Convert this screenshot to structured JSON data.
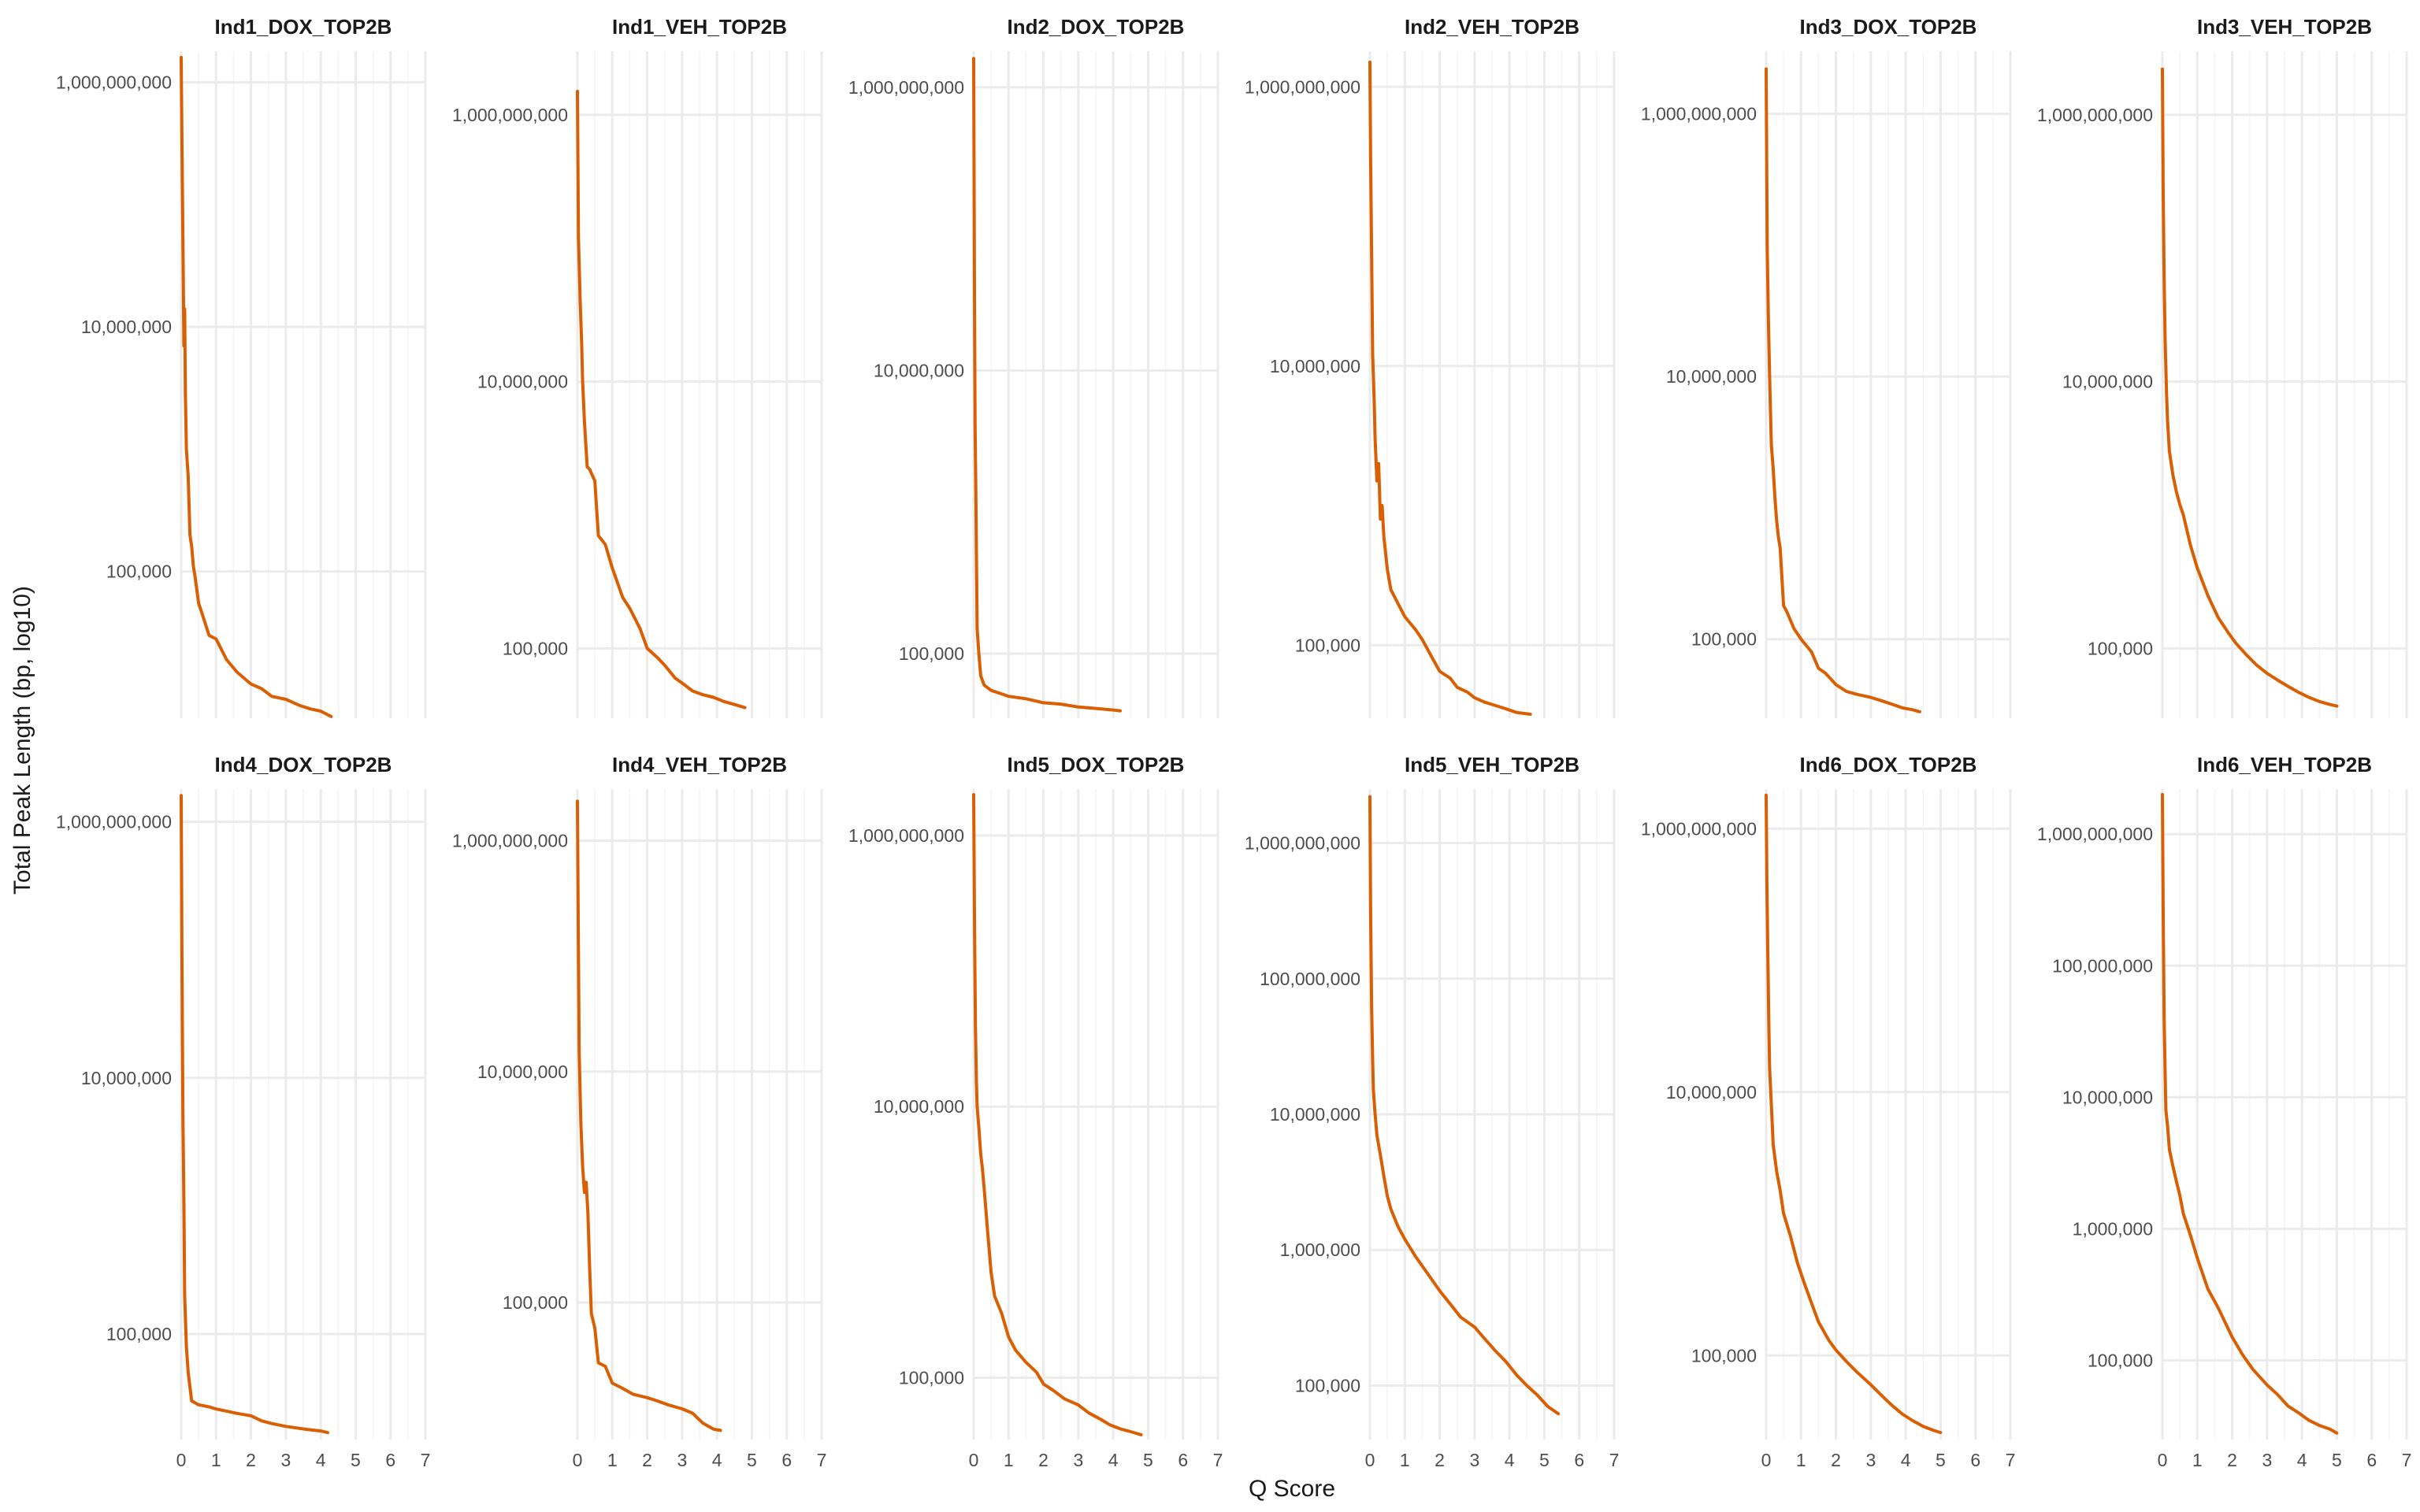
{
  "chart_data": {
    "type": "line",
    "layout": "facet grid, 2 rows x 6 columns, free y scales",
    "xlabel": "Q Score",
    "ylabel": "Total Peak Length (bp, log10)",
    "yscale": "log10",
    "xlim": [
      0,
      7
    ],
    "x_ticks": [
      "0",
      "1",
      "2",
      "3",
      "4",
      "5",
      "6",
      "7"
    ],
    "series_color": "#d95f02",
    "panels": [
      {
        "title": "Ind1_DOX_TOP2B",
        "ylim": [
          6300.0,
          1800000000.0
        ],
        "yticks": [
          100000.0,
          10000000.0,
          1000000000.0
        ],
        "ytick_labels": [
          "100,000",
          "10,000,000",
          "1,000,000,000"
        ],
        "x": [
          0,
          0.02,
          0.05,
          0.08,
          0.1,
          0.12,
          0.15,
          0.2,
          0.25,
          0.3,
          0.35,
          0.4,
          0.5,
          0.6,
          0.8,
          1.0,
          1.3,
          1.6,
          2.0,
          2.3,
          2.6,
          3.0,
          3.4,
          3.7,
          4.0,
          4.3
        ],
        "y": [
          1600000000.0,
          350000000.0,
          50000000.0,
          7000000.0,
          14000000.0,
          3000000.0,
          1000000.0,
          600000.0,
          200000.0,
          160000.0,
          110000.0,
          90000.0,
          55000.0,
          45000.0,
          30000.0,
          28000.0,
          19000.0,
          15000.0,
          12000.0,
          11000.0,
          9500.0,
          9000.0,
          8000.0,
          7500.0,
          7200.0,
          6500.0
        ]
      },
      {
        "title": "Ind1_VEH_TOP2B",
        "ylim": [
          30000.0,
          3000000000.0
        ],
        "yticks": [
          100000.0,
          10000000.0,
          1000000000.0
        ],
        "ytick_labels": [
          "100,000",
          "10,000,000",
          "1,000,000,000"
        ],
        "x": [
          0,
          0.03,
          0.08,
          0.12,
          0.15,
          0.2,
          0.28,
          0.35,
          0.5,
          0.6,
          0.7,
          0.8,
          1.0,
          1.3,
          1.5,
          1.8,
          2.0,
          2.3,
          2.5,
          2.8,
          3.0,
          3.3,
          3.6,
          3.9,
          4.2,
          4.5,
          4.8
        ],
        "y": [
          1500000000.0,
          120000000.0,
          40000000.0,
          20000000.0,
          10000000.0,
          5000000.0,
          2300000.0,
          2200000.0,
          1800000.0,
          700000.0,
          650000.0,
          600000.0,
          400000.0,
          240000.0,
          200000.0,
          140000.0,
          100000.0,
          85000.0,
          75000.0,
          60000.0,
          55000.0,
          48000.0,
          45000.0,
          43000.0,
          40000.0,
          38000.0,
          36000.0
        ]
      },
      {
        "title": "Ind2_DOX_TOP2B",
        "ylim": [
          35000.0,
          1800000000.0
        ],
        "yticks": [
          100000.0,
          10000000.0,
          1000000000.0
        ],
        "ytick_labels": [
          "100,000",
          "10,000,000",
          "1,000,000,000"
        ],
        "x": [
          0,
          0.02,
          0.04,
          0.06,
          0.08,
          0.1,
          0.15,
          0.2,
          0.3,
          0.5,
          0.8,
          1.0,
          1.5,
          2.0,
          2.5,
          3.0,
          3.5,
          4.0,
          4.2
        ],
        "y": [
          1600000000.0,
          50000000.0,
          4000000.0,
          1500000.0,
          500000.0,
          150000.0,
          100000.0,
          70000.0,
          60000.0,
          55000.0,
          52000.0,
          50000.0,
          48000.0,
          45000.0,
          44000.0,
          42000.0,
          41000.0,
          40000.0,
          39500.0
        ]
      },
      {
        "title": "Ind2_VEH_TOP2B",
        "ylim": [
          30000.0,
          1800000000.0
        ],
        "yticks": [
          100000.0,
          10000000.0,
          1000000000.0
        ],
        "ytick_labels": [
          "100,000",
          "10,000,000",
          "1,000,000,000"
        ],
        "x": [
          0,
          0.02,
          0.05,
          0.08,
          0.12,
          0.15,
          0.2,
          0.25,
          0.3,
          0.35,
          0.4,
          0.5,
          0.6,
          0.8,
          1.0,
          1.3,
          1.5,
          1.8,
          2.0,
          2.3,
          2.5,
          2.8,
          3.0,
          3.3,
          3.6,
          3.9,
          4.2,
          4.6
        ],
        "y": [
          1500000000.0,
          300000000.0,
          60000000.0,
          12000000.0,
          6000000.0,
          3000000.0,
          1500000.0,
          2000000.0,
          800000.0,
          1000000.0,
          600000.0,
          350000.0,
          250000.0,
          200000.0,
          160000.0,
          130000.0,
          110000.0,
          80000.0,
          65000.0,
          58000.0,
          50000.0,
          46000.0,
          42000.0,
          39000.0,
          37000.0,
          35000.0,
          33000.0,
          32000.0
        ]
      },
      {
        "title": "Ind3_DOX_TOP2B",
        "ylim": [
          25000.0,
          3000000000.0
        ],
        "yticks": [
          100000.0,
          10000000.0,
          1000000000.0
        ],
        "ytick_labels": [
          "100,000",
          "10,000,000",
          "1,000,000,000"
        ],
        "x": [
          0,
          0.03,
          0.06,
          0.1,
          0.12,
          0.15,
          0.2,
          0.25,
          0.3,
          0.35,
          0.4,
          0.5,
          0.6,
          0.8,
          1.0,
          1.3,
          1.5,
          1.7,
          2.0,
          2.3,
          2.6,
          3.0,
          3.3,
          3.6,
          3.9,
          4.2,
          4.4
        ],
        "y": [
          2200000000.0,
          100000000.0,
          30000000.0,
          10000000.0,
          6000000.0,
          3000000.0,
          2000000.0,
          1200000.0,
          800000.0,
          600000.0,
          500000.0,
          180000.0,
          160000.0,
          120000.0,
          100000.0,
          80000.0,
          60000.0,
          55000.0,
          45000.0,
          40000.0,
          38000.0,
          36000.0,
          34000.0,
          32000.0,
          30000.0,
          29000.0,
          28000.0
        ]
      },
      {
        "title": "Ind3_VEH_TOP2B",
        "ylim": [
          30000.0,
          3000000000.0
        ],
        "yticks": [
          100000.0,
          10000000.0,
          1000000000.0
        ],
        "ytick_labels": [
          "100,000",
          "10,000,000",
          "1,000,000,000"
        ],
        "x": [
          0,
          0.02,
          0.05,
          0.08,
          0.12,
          0.15,
          0.2,
          0.3,
          0.4,
          0.5,
          0.6,
          0.8,
          1.0,
          1.3,
          1.6,
          1.9,
          2.1,
          2.4,
          2.7,
          3.0,
          3.3,
          3.6,
          3.9,
          4.2,
          4.5,
          4.8,
          5.0
        ],
        "y": [
          2200000000.0,
          300000000.0,
          60000000.0,
          20000000.0,
          8000000.0,
          5000000.0,
          3000000.0,
          2000000.0,
          1500000.0,
          1200000.0,
          1000000.0,
          600000.0,
          400000.0,
          250000.0,
          170000.0,
          130000.0,
          110000.0,
          90000.0,
          75000.0,
          65000.0,
          58000.0,
          52000.0,
          47000.0,
          43000.0,
          40000.0,
          38000.0,
          37000.0
        ]
      },
      {
        "title": "Ind4_DOX_TOP2B",
        "ylim": [
          15000.0,
          1800000000.0
        ],
        "yticks": [
          100000.0,
          10000000.0,
          1000000000.0
        ],
        "ytick_labels": [
          "100,000",
          "10,000,000",
          "1,000,000,000"
        ],
        "x": [
          0,
          0.02,
          0.05,
          0.08,
          0.1,
          0.15,
          0.2,
          0.3,
          0.5,
          0.8,
          1.0,
          1.3,
          1.6,
          2.0,
          2.3,
          2.6,
          3.0,
          3.3,
          3.6,
          4.0,
          4.2
        ],
        "y": [
          1600000000.0,
          100000000.0,
          5000000.0,
          1000000.0,
          200000.0,
          80000.0,
          50000.0,
          30000.0,
          28000.0,
          27000.0,
          26000.0,
          25000.0,
          24000.0,
          23000.0,
          21000.0,
          20000.0,
          19000.0,
          18500.0,
          18000.0,
          17500.0,
          17000.0
        ]
      },
      {
        "title": "Ind4_VEH_TOP2B",
        "ylim": [
          6500.0,
          2800000000.0
        ],
        "yticks": [
          100000.0,
          10000000.0,
          1000000000.0
        ],
        "ytick_labels": [
          "100,000",
          "10,000,000",
          "1,000,000,000"
        ],
        "x": [
          0,
          0.02,
          0.05,
          0.1,
          0.15,
          0.2,
          0.25,
          0.3,
          0.35,
          0.4,
          0.5,
          0.6,
          0.8,
          1.0,
          1.3,
          1.6,
          2.0,
          2.3,
          2.6,
          3.0,
          3.3,
          3.6,
          3.9,
          4.1
        ],
        "y": [
          2200000000.0,
          250000000.0,
          15000000.0,
          3500000.0,
          1500000.0,
          900000.0,
          1100000.0,
          600000.0,
          200000.0,
          80000.0,
          60000.0,
          30000.0,
          28000.0,
          20000.0,
          18000.0,
          16000.0,
          15000.0,
          14000.0,
          13000.0,
          12000.0,
          11000.0,
          9000.0,
          8000.0,
          7800.0
        ]
      },
      {
        "title": "Ind5_DOX_TOP2B",
        "ylim": [
          35000.0,
          2200000000.0
        ],
        "yticks": [
          100000.0,
          10000000.0,
          1000000000.0
        ],
        "ytick_labels": [
          "100,000",
          "10,000,000",
          "1,000,000,000"
        ],
        "x": [
          0,
          0.02,
          0.05,
          0.08,
          0.1,
          0.15,
          0.2,
          0.25,
          0.3,
          0.4,
          0.5,
          0.6,
          0.8,
          1.0,
          1.2,
          1.5,
          1.8,
          2.0,
          2.3,
          2.6,
          3.0,
          3.3,
          3.6,
          3.9,
          4.2,
          4.5,
          4.8
        ],
        "y": [
          2000000000.0,
          300000000.0,
          40000000.0,
          15000000.0,
          10000000.0,
          7000000.0,
          4500000.0,
          3500000.0,
          2500000.0,
          1200000.0,
          600000.0,
          400000.0,
          300000.0,
          200000.0,
          160000.0,
          130000.0,
          110000.0,
          90000.0,
          80000.0,
          70000.0,
          63000.0,
          55000.0,
          50000.0,
          45000.0,
          42000.0,
          40000.0,
          38000.0
        ]
      },
      {
        "title": "Ind5_VEH_TOP2B",
        "ylim": [
          40000.0,
          2500000000.0
        ],
        "yticks": [
          100000.0,
          1000000.0,
          10000000.0,
          100000000.0,
          1000000000.0
        ],
        "ytick_labels": [
          "100,000",
          "1,000,000",
          "10,000,000",
          "100,000,000",
          "1,000,000,000"
        ],
        "x": [
          0,
          0.02,
          0.05,
          0.08,
          0.1,
          0.15,
          0.2,
          0.3,
          0.4,
          0.5,
          0.6,
          0.8,
          1.0,
          1.3,
          1.6,
          2.0,
          2.3,
          2.6,
          3.0,
          3.3,
          3.6,
          3.9,
          4.2,
          4.5,
          4.8,
          5.1,
          5.4
        ],
        "y": [
          2200000000.0,
          300000000.0,
          60000000.0,
          25000000.0,
          15000000.0,
          10000000.0,
          7000000.0,
          5000000.0,
          3500000.0,
          2500000.0,
          2000000.0,
          1500000.0,
          1200000.0,
          900000.0,
          700000.0,
          500000.0,
          400000.0,
          320000.0,
          270000.0,
          220000.0,
          180000.0,
          150000.0,
          120000.0,
          100000.0,
          85000.0,
          70000.0,
          62000.0
        ]
      },
      {
        "title": "Ind6_DOX_TOP2B",
        "ylim": [
          23000.0,
          2000000000.0
        ],
        "yticks": [
          100000.0,
          10000000.0,
          1000000000.0
        ],
        "ytick_labels": [
          "100,000",
          "10,000,000",
          "1,000,000,000"
        ],
        "x": [
          0,
          0.02,
          0.05,
          0.08,
          0.1,
          0.15,
          0.2,
          0.3,
          0.4,
          0.5,
          0.7,
          0.9,
          1.1,
          1.3,
          1.5,
          1.8,
          2.0,
          2.3,
          2.6,
          3.0,
          3.3,
          3.6,
          3.9,
          4.2,
          4.5,
          4.8,
          5.0
        ],
        "y": [
          1800000000.0,
          400000000.0,
          100000000.0,
          30000000.0,
          15000000.0,
          8000000.0,
          4000000.0,
          2500000.0,
          1800000.0,
          1200000.0,
          800000.0,
          500000.0,
          350000.0,
          250000.0,
          180000.0,
          130000.0,
          110000.0,
          90000.0,
          75000.0,
          60000.0,
          50000.0,
          42000.0,
          36000.0,
          32000.0,
          29000.0,
          27000.0,
          26000.0
        ]
      },
      {
        "title": "Ind6_VEH_TOP2B",
        "ylim": [
          25000.0,
          2200000000.0
        ],
        "yticks": [
          100000.0,
          1000000.0,
          10000000.0,
          100000000.0,
          1000000000.0
        ],
        "ytick_labels": [
          "100,000",
          "1,000,000",
          "10,000,000",
          "100,000,000",
          "1,000,000,000"
        ],
        "x": [
          0,
          0.02,
          0.05,
          0.08,
          0.1,
          0.15,
          0.2,
          0.3,
          0.4,
          0.5,
          0.6,
          0.8,
          1.0,
          1.3,
          1.6,
          2.0,
          2.3,
          2.6,
          3.0,
          3.3,
          3.6,
          3.9,
          4.2,
          4.5,
          4.8,
          5.0
        ],
        "y": [
          2000000000.0,
          300000000.0,
          40000000.0,
          15000000.0,
          8000000.0,
          6000000.0,
          4000000.0,
          3000000.0,
          2300000.0,
          1800000.0,
          1300000.0,
          900000.0,
          600000.0,
          350000.0,
          250000.0,
          150000.0,
          110000.0,
          85000.0,
          65000.0,
          55000.0,
          45000.0,
          40000.0,
          35000.0,
          32000.0,
          30000.0,
          28000.0
        ]
      }
    ]
  }
}
